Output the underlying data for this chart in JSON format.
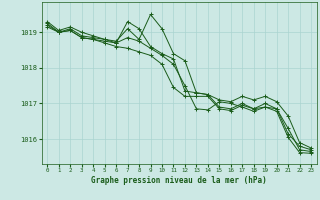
{
  "background_color": "#cce8e4",
  "grid_color": "#aad4d0",
  "line_color": "#1a5c1a",
  "title": "Graphe pression niveau de la mer (hPa)",
  "ylabel_ticks": [
    1016,
    1017,
    1018,
    1019
  ],
  "xlim": [
    -0.5,
    23.5
  ],
  "ylim": [
    1015.3,
    1019.85
  ],
  "series": [
    {
      "x": [
        0,
        1,
        2,
        3,
        4,
        5,
        6,
        7,
        8,
        9,
        10,
        11,
        12,
        13,
        14,
        15,
        16,
        17,
        18,
        19,
        20,
        21,
        22,
        23
      ],
      "y": [
        1019.25,
        1019.0,
        1019.1,
        1018.9,
        1018.85,
        1018.8,
        1018.75,
        1019.1,
        1018.8,
        1019.5,
        1019.1,
        1018.4,
        1018.2,
        1017.3,
        1017.25,
        1016.9,
        1016.85,
        1017.0,
        1016.85,
        1017.0,
        1016.85,
        1016.3,
        1015.7,
        1015.65
      ]
    },
    {
      "x": [
        0,
        1,
        2,
        3,
        4,
        5,
        6,
        7,
        8,
        9,
        10,
        11,
        12,
        13,
        14,
        15,
        16,
        17,
        18,
        19,
        20,
        21,
        22,
        23
      ],
      "y": [
        1019.2,
        1019.0,
        1019.05,
        1018.85,
        1018.8,
        1018.75,
        1018.7,
        1018.85,
        1018.75,
        1018.55,
        1018.35,
        1018.1,
        1017.5,
        1016.85,
        1016.82,
        1017.05,
        1017.0,
        1016.9,
        1016.78,
        1016.9,
        1016.85,
        1016.15,
        1015.8,
        1015.7
      ]
    },
    {
      "x": [
        0,
        1,
        2,
        3,
        4,
        5,
        6,
        7,
        8,
        9,
        10,
        11,
        12,
        13,
        14,
        15,
        16,
        17,
        18,
        19,
        20,
        21,
        22,
        23
      ],
      "y": [
        1019.15,
        1019.0,
        1019.05,
        1018.85,
        1018.8,
        1018.7,
        1018.6,
        1018.55,
        1018.45,
        1018.35,
        1018.1,
        1017.45,
        1017.2,
        1017.2,
        1017.2,
        1016.85,
        1016.8,
        1016.95,
        1016.85,
        1016.9,
        1016.78,
        1016.05,
        1015.62,
        1015.6
      ]
    },
    {
      "x": [
        0,
        1,
        2,
        3,
        4,
        5,
        6,
        7,
        8,
        9,
        10,
        11,
        12,
        13,
        14,
        15,
        16,
        17,
        18,
        19,
        20,
        21,
        22,
        23
      ],
      "y": [
        1019.3,
        1019.05,
        1019.15,
        1019.0,
        1018.9,
        1018.8,
        1018.7,
        1019.3,
        1019.1,
        1018.6,
        1018.4,
        1018.25,
        1017.35,
        1017.3,
        1017.25,
        1017.1,
        1017.05,
        1017.2,
        1017.1,
        1017.2,
        1017.05,
        1016.65,
        1015.9,
        1015.75
      ]
    }
  ],
  "figwidth": 3.2,
  "figheight": 2.0,
  "dpi": 100
}
